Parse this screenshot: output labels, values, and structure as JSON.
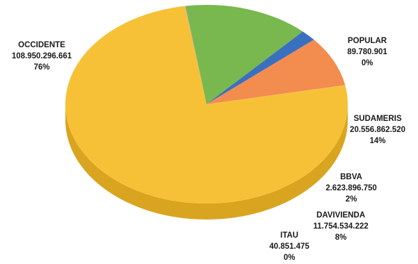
{
  "chart_data": {
    "type": "pie",
    "style": "3d",
    "slices": [
      {
        "name": "OCCIDENTE",
        "value": "108.950.296.661",
        "num": 108950296661,
        "pct": "76%",
        "color": "#F7C137",
        "side_color": "#D9A420"
      },
      {
        "name": "POPULAR",
        "value": "89.780.901",
        "num": 89780901,
        "pct": "0%",
        "color": "#5B9BD5",
        "side_color": "#3E77AE"
      },
      {
        "name": "SUDAMERIS",
        "value": "20.556.862.520",
        "num": 20556862520,
        "pct": "14%",
        "color": "#78B84E",
        "side_color": "#57903A"
      },
      {
        "name": "BBVA",
        "value": "2.623.896.750",
        "num": 2623896750,
        "pct": "2%",
        "color": "#3A70C0",
        "side_color": "#274F8C"
      },
      {
        "name": "DAVIVIENDA",
        "value": "11.754.534.222",
        "num": 11754534222,
        "pct": "8%",
        "color": "#F38C4F",
        "side_color": "#9C4E20"
      },
      {
        "name": "ITAU",
        "value": "40.851.475",
        "num": 40851475,
        "pct": "0%",
        "color": "#F0A84E",
        "side_color": "#B97C32"
      }
    ]
  }
}
